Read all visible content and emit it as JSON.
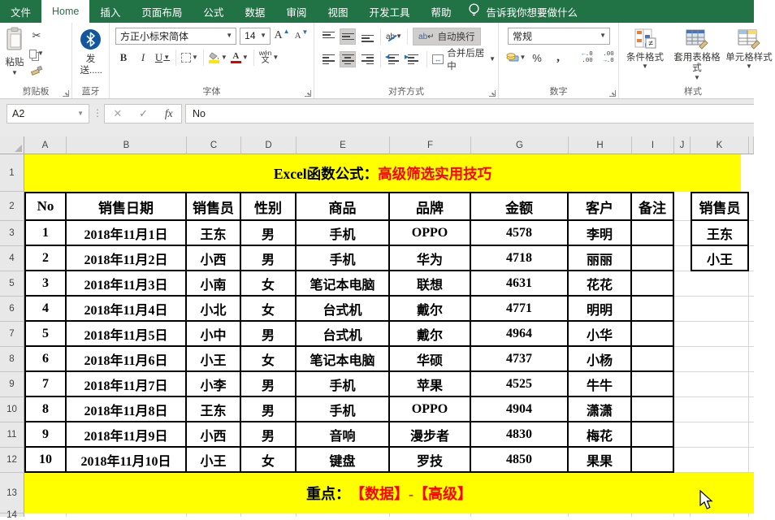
{
  "tabbar": {
    "tabs": [
      "文件",
      "Home",
      "插入",
      "页面布局",
      "公式",
      "数据",
      "审阅",
      "视图",
      "开发工具",
      "帮助"
    ],
    "active_tab": "Home",
    "tell_me": "告诉我你想要做什么"
  },
  "ribbon": {
    "clipboard": {
      "paste": "粘贴",
      "group": "剪贴板"
    },
    "bluetooth": {
      "send": "发送.....",
      "group": "蓝牙"
    },
    "font": {
      "family": "方正小标宋简体",
      "size": "14",
      "b": "B",
      "i": "I",
      "u": "U",
      "wen": "wén",
      "wen2": "文",
      "group": "字体"
    },
    "align": {
      "wrap": "自动换行",
      "merge": "合并后居中",
      "group": "对齐方式"
    },
    "number": {
      "format": "常规",
      "percent": "%",
      "comma": ",",
      "group": "数字"
    },
    "styles": {
      "cond": "条件格式",
      "table": "套用表格格式",
      "cell": "单元格样式",
      "group": "样式"
    }
  },
  "formula": {
    "name_box": "A2",
    "fx": "fx",
    "value": "No"
  },
  "sheet": {
    "cols": [
      "A",
      "B",
      "C",
      "D",
      "E",
      "F",
      "G",
      "H",
      "I",
      "J",
      "K"
    ],
    "rows": [
      "1",
      "2",
      "3",
      "4",
      "5",
      "6",
      "7",
      "8",
      "9",
      "10",
      "11",
      "12",
      "13",
      "14"
    ],
    "title": {
      "black": "Excel函数公式：",
      "red": "高级筛选实用技巧"
    },
    "footer": {
      "black": "重点：",
      "red": "【数据】-【高级】"
    },
    "headers": [
      "No",
      "销售日期",
      "销售员",
      "性别",
      "商品",
      "品牌",
      "金额",
      "客户",
      "备注"
    ],
    "data": [
      [
        "1",
        "2018年11月1日",
        "王东",
        "男",
        "手机",
        "OPPO",
        "4578",
        "李明",
        ""
      ],
      [
        "2",
        "2018年11月2日",
        "小西",
        "男",
        "手机",
        "华为",
        "4718",
        "丽丽",
        ""
      ],
      [
        "3",
        "2018年11月3日",
        "小南",
        "女",
        "笔记本电脑",
        "联想",
        "4631",
        "花花",
        ""
      ],
      [
        "4",
        "2018年11月4日",
        "小北",
        "女",
        "台式机",
        "戴尔",
        "4771",
        "明明",
        ""
      ],
      [
        "5",
        "2018年11月5日",
        "小中",
        "男",
        "台式机",
        "戴尔",
        "4964",
        "小华",
        ""
      ],
      [
        "6",
        "2018年11月6日",
        "小王",
        "女",
        "笔记本电脑",
        "华硕",
        "4737",
        "小杨",
        ""
      ],
      [
        "7",
        "2018年11月7日",
        "小李",
        "男",
        "手机",
        "苹果",
        "4525",
        "牛牛",
        ""
      ],
      [
        "8",
        "2018年11月8日",
        "王东",
        "男",
        "手机",
        "OPPO",
        "4904",
        "潇潇",
        ""
      ],
      [
        "9",
        "2018年11月9日",
        "小西",
        "男",
        "音响",
        "漫步者",
        "4830",
        "梅花",
        ""
      ],
      [
        "10",
        "2018年11月10日",
        "小王",
        "女",
        "键盘",
        "罗技",
        "4850",
        "果果",
        ""
      ]
    ],
    "criteria": {
      "header": "销售员",
      "values": [
        "王东",
        "小王"
      ]
    },
    "colors": {
      "banner_yellow": "#ffff00",
      "highlight_red": "#ff0000",
      "excel_green": "#217346"
    }
  }
}
